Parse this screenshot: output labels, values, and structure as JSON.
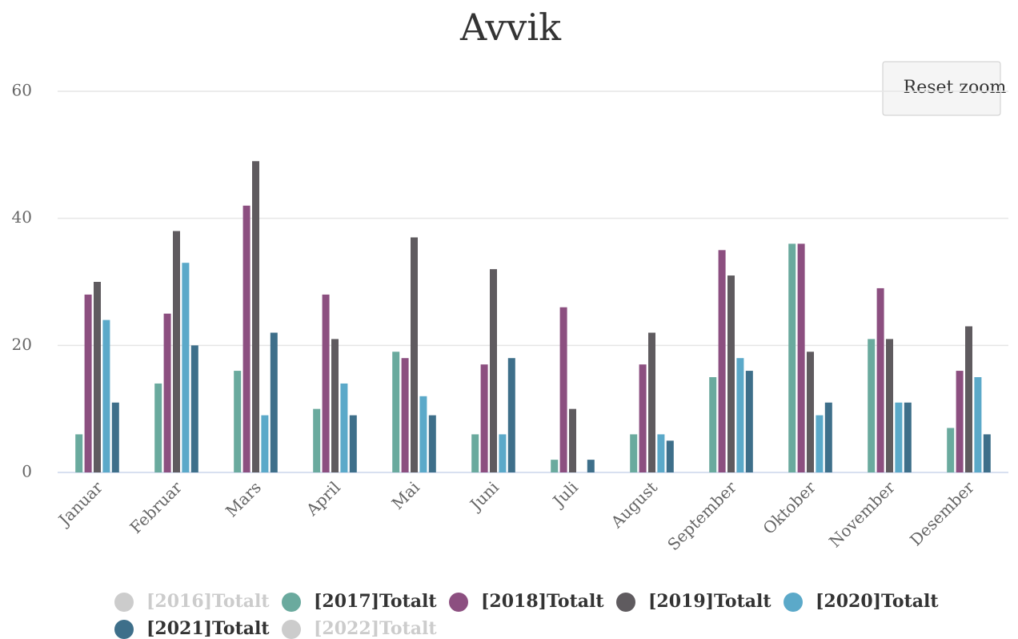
{
  "chart_data": {
    "type": "bar",
    "title": "Avvik",
    "categories": [
      "Januar",
      "Februar",
      "Mars",
      "April",
      "Mai",
      "Juni",
      "Juli",
      "August",
      "September",
      "Oktober",
      "November",
      "Desember"
    ],
    "series": [
      {
        "name": "[2016]Totalt",
        "color": "#cccccc",
        "hidden": true,
        "values": [
          null,
          null,
          null,
          null,
          null,
          null,
          null,
          null,
          null,
          null,
          null,
          null
        ]
      },
      {
        "name": "[2017]Totalt",
        "color": "#6aaa9e",
        "values": [
          6,
          14,
          16,
          10,
          19,
          6,
          2,
          6,
          15,
          36,
          21,
          7
        ]
      },
      {
        "name": "[2018]Totalt",
        "color": "#8c4f80",
        "values": [
          28,
          25,
          42,
          28,
          18,
          17,
          26,
          17,
          35,
          36,
          29,
          16
        ]
      },
      {
        "name": "[2019]Totalt",
        "color": "#5f5b5f",
        "values": [
          30,
          38,
          49,
          21,
          37,
          32,
          10,
          22,
          31,
          19,
          21,
          23
        ]
      },
      {
        "name": "[2020]Totalt",
        "color": "#5ba9c9",
        "values": [
          24,
          33,
          9,
          14,
          12,
          6,
          null,
          6,
          18,
          9,
          11,
          15
        ]
      },
      {
        "name": "[2021]Totalt",
        "color": "#3e6f8a",
        "values": [
          11,
          20,
          22,
          9,
          9,
          18,
          2,
          5,
          16,
          11,
          11,
          6
        ]
      },
      {
        "name": "[2022]Totalt",
        "color": "#cccccc",
        "hidden": true,
        "values": [
          null,
          null,
          null,
          null,
          null,
          null,
          null,
          null,
          null,
          null,
          null,
          null
        ]
      }
    ],
    "ylim": [
      0,
      60
    ],
    "yticks": [
      0,
      20,
      40,
      60
    ],
    "grid": true
  },
  "reset_zoom_button": "Reset zoom"
}
